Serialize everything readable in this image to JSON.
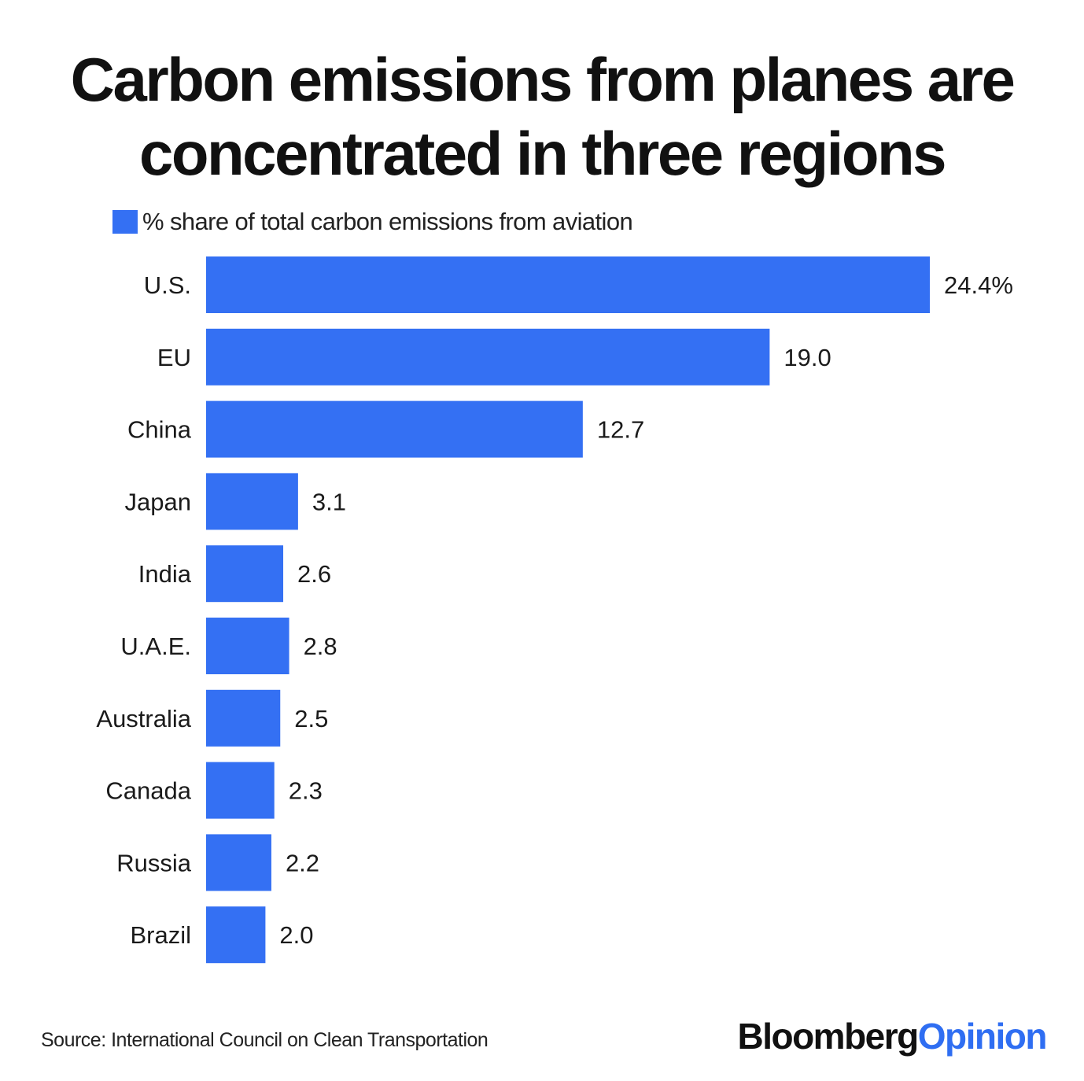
{
  "title_line1": "Carbon emissions from planes are",
  "title_line2": "concentrated in three regions",
  "legend_label": "% share of total carbon emissions from aviation",
  "source": "Source: International Council on Clean Transportation",
  "brand": {
    "part1": "Bloomberg",
    "part2": "Opinion"
  },
  "colors": {
    "bar": "#3470f3",
    "brand_accent": "#2f6ef2",
    "text": "#111111"
  },
  "chart_data": {
    "type": "bar",
    "orientation": "horizontal",
    "title": "Carbon emissions from planes are concentrated in three regions",
    "categories": [
      "U.S.",
      "EU",
      "China",
      "Japan",
      "India",
      "U.A.E.",
      "Australia",
      "Canada",
      "Russia",
      "Brazil"
    ],
    "values": [
      24.4,
      19.0,
      12.7,
      3.1,
      2.6,
      2.8,
      2.5,
      2.3,
      2.2,
      2.0
    ],
    "value_labels": [
      "24.4%",
      "19.0",
      "12.7",
      "3.1",
      "2.6",
      "2.8",
      "2.5",
      "2.3",
      "2.2",
      "2.0"
    ],
    "series": [
      {
        "name": "% share of total carbon emissions from aviation",
        "values": [
          24.4,
          19.0,
          12.7,
          3.1,
          2.6,
          2.8,
          2.5,
          2.3,
          2.2,
          2.0
        ]
      }
    ],
    "xlim": [
      0,
      24.4
    ],
    "grid": false,
    "legend_position": "top-left",
    "xlabel": "",
    "ylabel": ""
  }
}
